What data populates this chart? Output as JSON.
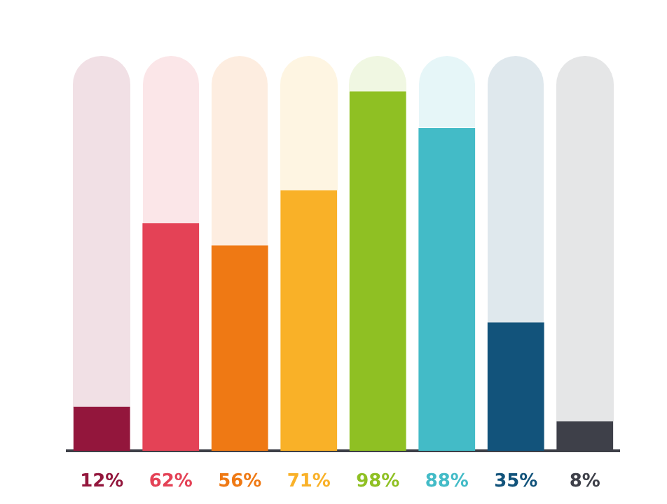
{
  "chart_data": {
    "type": "bar",
    "categories": [
      null,
      null,
      null,
      null,
      null,
      null,
      null,
      null
    ],
    "values": [
      12,
      62,
      56,
      71,
      98,
      88,
      35,
      8
    ],
    "colors": [
      "#93163c",
      "#e44256",
      "#ef7914",
      "#f9b128",
      "#8fc023",
      "#43bbc7",
      "#12537b",
      "#3e4049"
    ],
    "value_labels": [
      "12%",
      "62%",
      "56%",
      "71%",
      "98%",
      "88%",
      "35%",
      "8%"
    ],
    "grid": false
  }
}
